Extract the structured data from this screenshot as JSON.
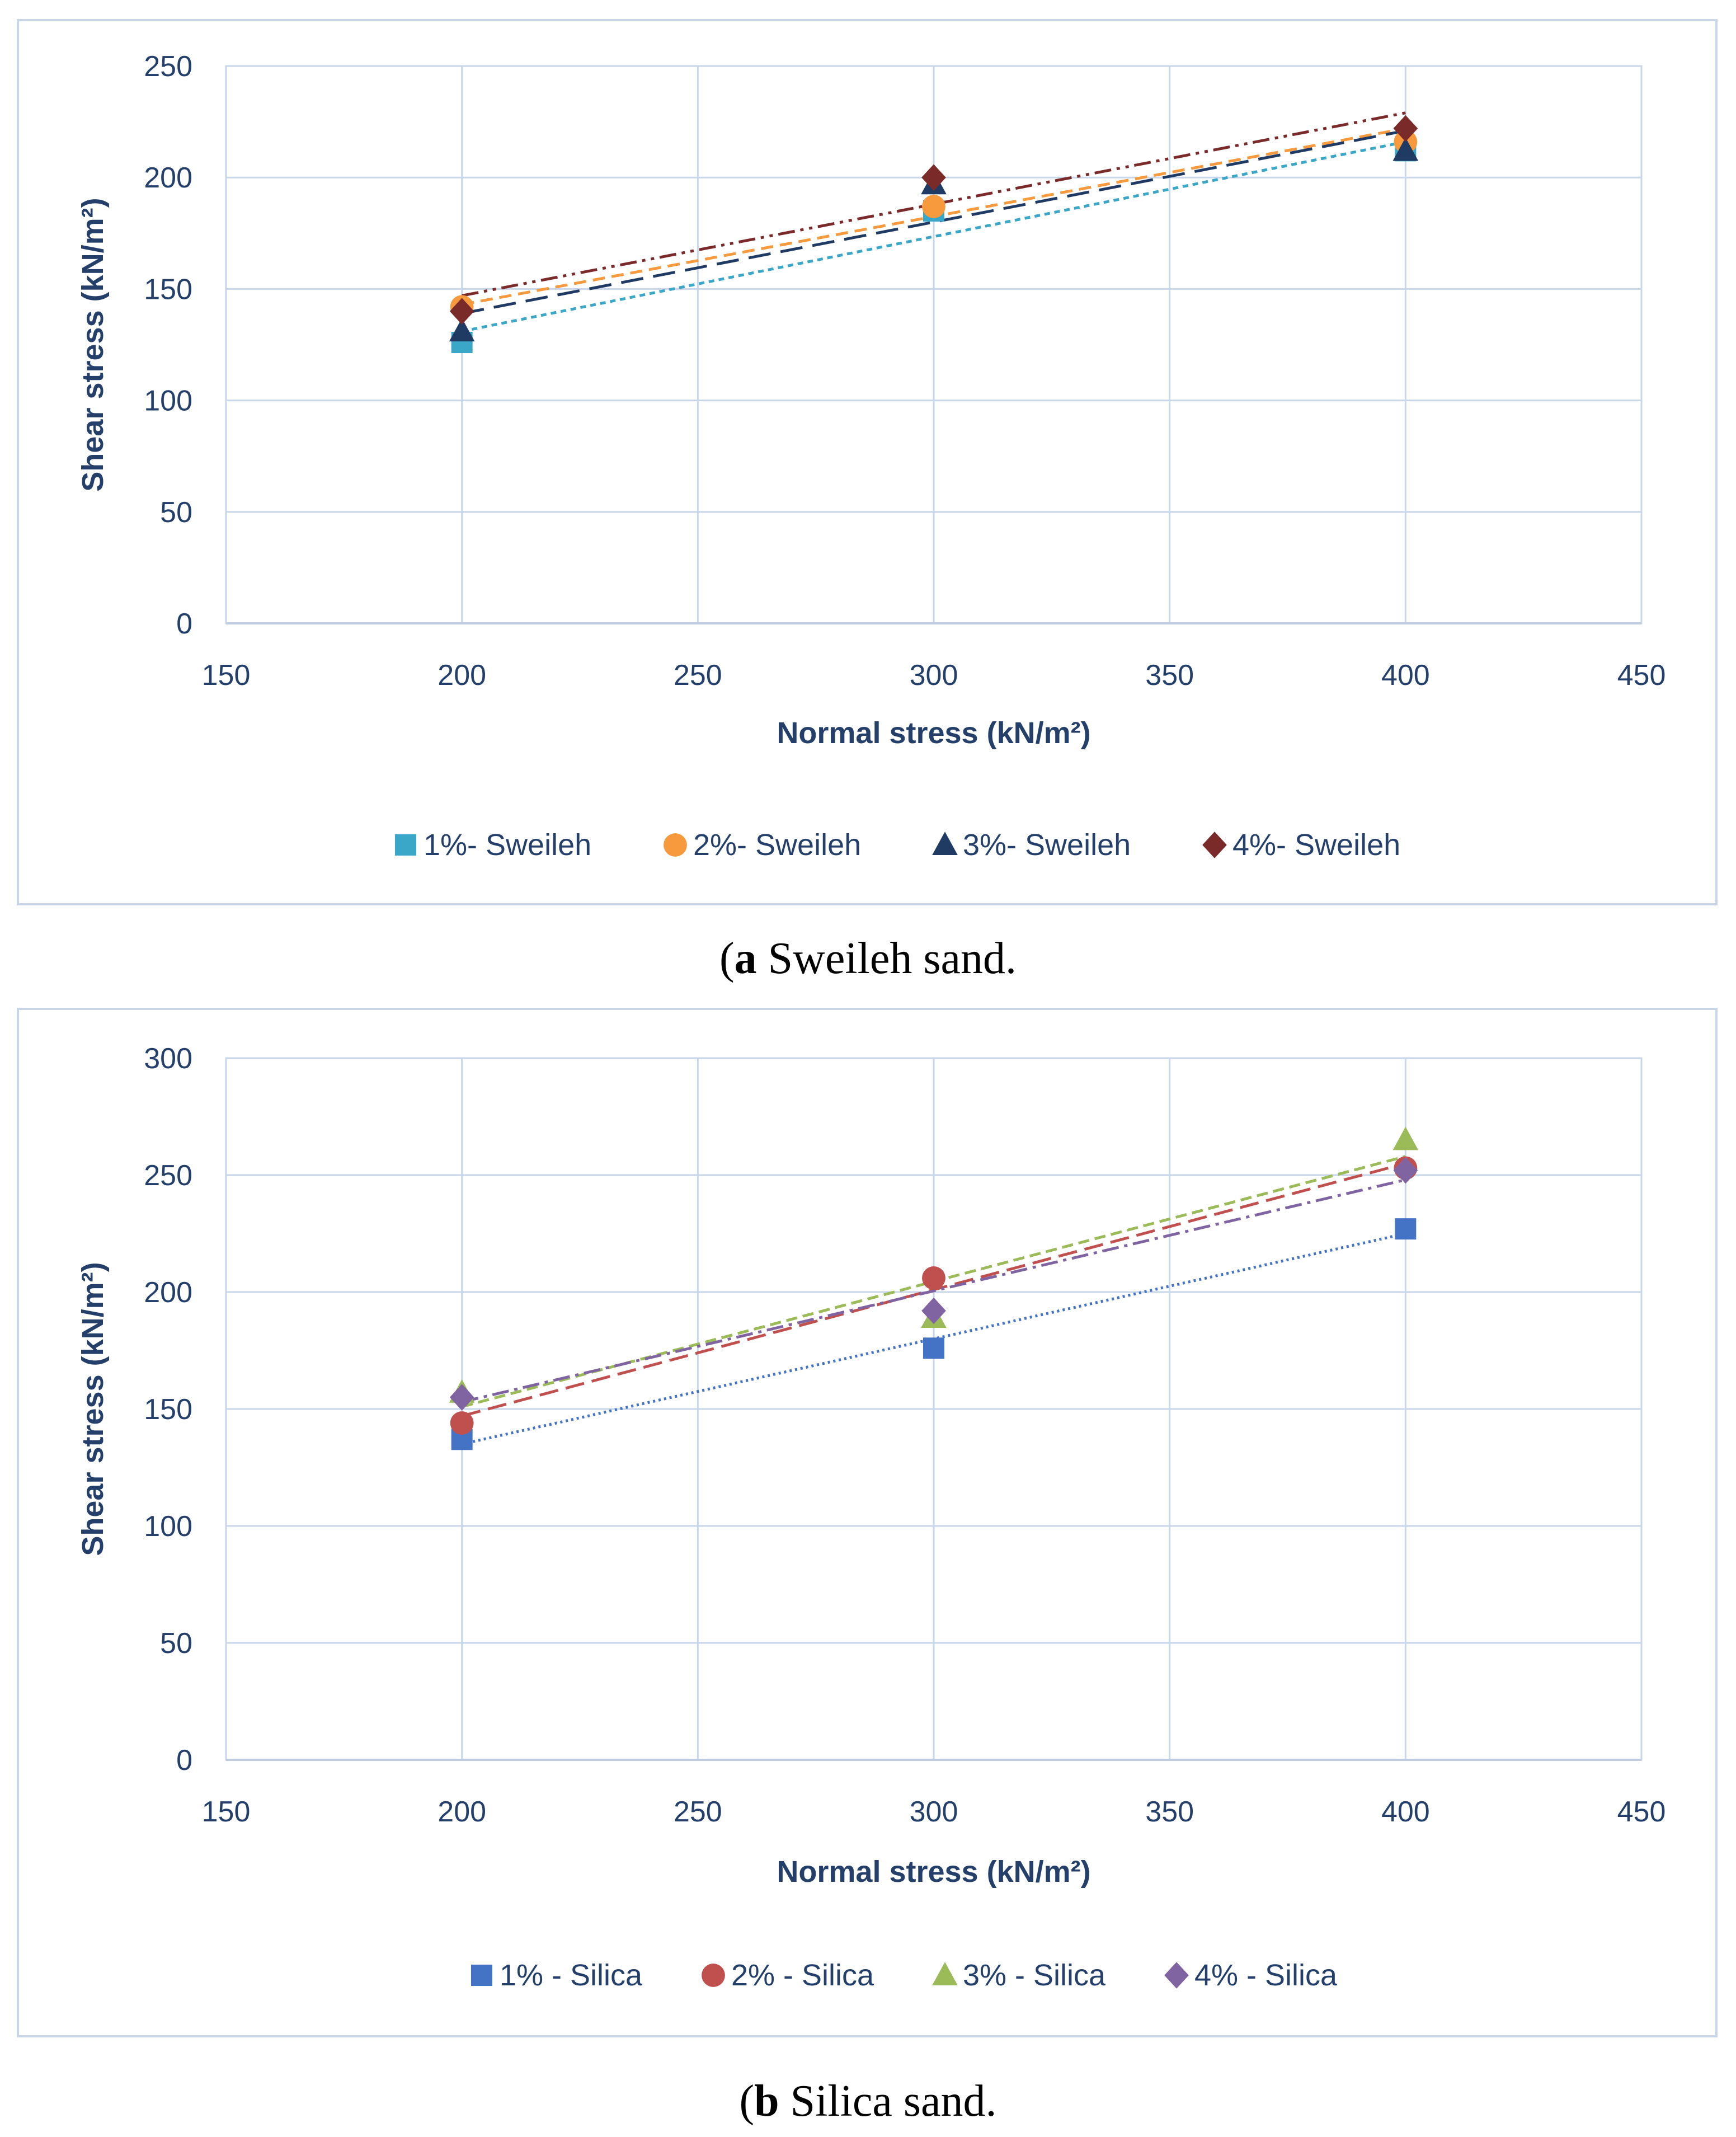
{
  "chart_data": [
    {
      "id": "a",
      "type": "scatter",
      "title": "",
      "caption": {
        "label": "a",
        "text": " Sweileh sand."
      },
      "xlabel": "Normal stress (kN/m²)",
      "ylabel": "Shear stress (kN/m²)",
      "xlim": [
        150,
        450
      ],
      "ylim": [
        0,
        250
      ],
      "xticks": [
        150,
        200,
        250,
        300,
        350,
        400,
        450
      ],
      "yticks": [
        0,
        50,
        100,
        150,
        200,
        250
      ],
      "grid": true,
      "legend_position": "bottom",
      "x": [
        200,
        300,
        400
      ],
      "series": [
        {
          "name": "1%- Sweileh",
          "marker": "square",
          "color": "#3aa6c8",
          "dash": "10,8",
          "values": [
            126,
            185,
            212
          ],
          "trend": [
            131,
            173,
            216
          ]
        },
        {
          "name": "2%- Sweileh",
          "marker": "circle",
          "color": "#f79a3e",
          "dash": "22,12",
          "values": [
            142,
            187,
            216
          ],
          "trend": [
            143,
            183,
            222
          ]
        },
        {
          "name": "3%- Sweileh",
          "marker": "triangle",
          "color": "#1f3a63",
          "dash": "40,18",
          "values": [
            131,
            197,
            212
          ],
          "trend": [
            139,
            180,
            221
          ]
        },
        {
          "name": "4%- Sweileh",
          "marker": "diamond",
          "color": "#7b2a2a",
          "dash": "30,10,6,10,6,10",
          "values": [
            140,
            200,
            222
          ],
          "trend": [
            147,
            188,
            229
          ]
        }
      ]
    },
    {
      "id": "b",
      "type": "scatter",
      "title": "",
      "caption": {
        "label": "b",
        "text": " Silica sand."
      },
      "xlabel": "Normal stress (kN/m²)",
      "ylabel": "Shear stress (kN/m²)",
      "xlim": [
        150,
        450
      ],
      "ylim": [
        0,
        300
      ],
      "xticks": [
        150,
        200,
        250,
        300,
        350,
        400,
        450
      ],
      "yticks": [
        0,
        50,
        100,
        150,
        200,
        250,
        300
      ],
      "grid": true,
      "legend_position": "bottom",
      "x": [
        200,
        300,
        400
      ],
      "series": [
        {
          "name": "1% - Silica",
          "marker": "square",
          "color": "#4472c4",
          "dash": "4,6",
          "values": [
            137,
            176,
            227
          ],
          "trend": [
            135,
            180,
            225
          ]
        },
        {
          "name": "2% - Silica",
          "marker": "circle",
          "color": "#c0504d",
          "dash": "34,14",
          "values": [
            144,
            206,
            253
          ],
          "trend": [
            147,
            201,
            255
          ]
        },
        {
          "name": "3% - Silica",
          "marker": "triangle",
          "color": "#9bbb59",
          "dash": "20,10",
          "values": [
            157,
            189,
            265
          ],
          "trend": [
            151,
            205,
            258
          ]
        },
        {
          "name": "4% - Silica",
          "marker": "diamond",
          "color": "#8064a2",
          "dash": "30,10,6,10",
          "values": [
            155,
            192,
            252
          ],
          "trend": [
            153,
            200,
            248
          ]
        }
      ]
    }
  ]
}
